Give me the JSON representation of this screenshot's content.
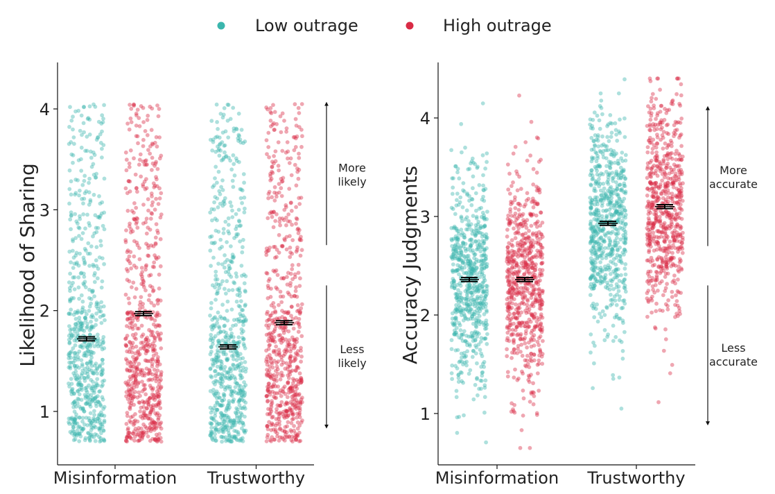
{
  "legend": {
    "items": [
      {
        "label": "Low outrage",
        "color": "#3bb6ad"
      },
      {
        "label": "High outrage",
        "color": "#d92b45"
      }
    ]
  },
  "chart_data": [
    {
      "type": "scatter",
      "subtype": "jittered strip plot with mean and error bars",
      "title": "",
      "xlabel": "",
      "ylabel": "Likelihood of Sharing",
      "categories": [
        "Misinformation",
        "Trustworthy"
      ],
      "y_ticks": [
        "1",
        "2",
        "3",
        "4"
      ],
      "ylim": [
        0.5,
        4.45
      ],
      "grid": false,
      "series": [
        {
          "name": "Low outrage",
          "color": "#3bb6ad",
          "means": [
            1.72,
            1.64
          ],
          "error": [
            0.02,
            0.02
          ]
        },
        {
          "name": "High outrage",
          "color": "#d92b45",
          "means": [
            1.97,
            1.88
          ],
          "error": [
            0.02,
            0.02
          ]
        }
      ],
      "annotations": {
        "up": {
          "line1": "More",
          "line2": "likely",
          "from": 2.65,
          "to": 4.05
        },
        "down": {
          "line1": "Less",
          "line2": "likely",
          "from": 2.25,
          "to": 0.85
        }
      }
    },
    {
      "type": "scatter",
      "subtype": "jittered strip plot with mean and error bars",
      "title": "",
      "xlabel": "",
      "ylabel": "Accuracy Judgments",
      "categories": [
        "Misinformation",
        "Trustworthy"
      ],
      "y_ticks": [
        "1",
        "2",
        "3",
        "4"
      ],
      "ylim": [
        0.5,
        4.55
      ],
      "grid": false,
      "series": [
        {
          "name": "Low outrage",
          "color": "#3bb6ad",
          "means": [
            2.36,
            2.93
          ],
          "error": [
            0.02,
            0.02
          ]
        },
        {
          "name": "High outrage",
          "color": "#d92b45",
          "means": [
            2.36,
            3.1
          ],
          "error": [
            0.02,
            0.02
          ]
        }
      ],
      "annotations": {
        "up": {
          "line1": "More",
          "line2": "accurate",
          "from": 2.7,
          "to": 4.1
        },
        "down": {
          "line1": "Less",
          "line2": "accurate",
          "from": 2.3,
          "to": 0.9
        }
      }
    }
  ]
}
